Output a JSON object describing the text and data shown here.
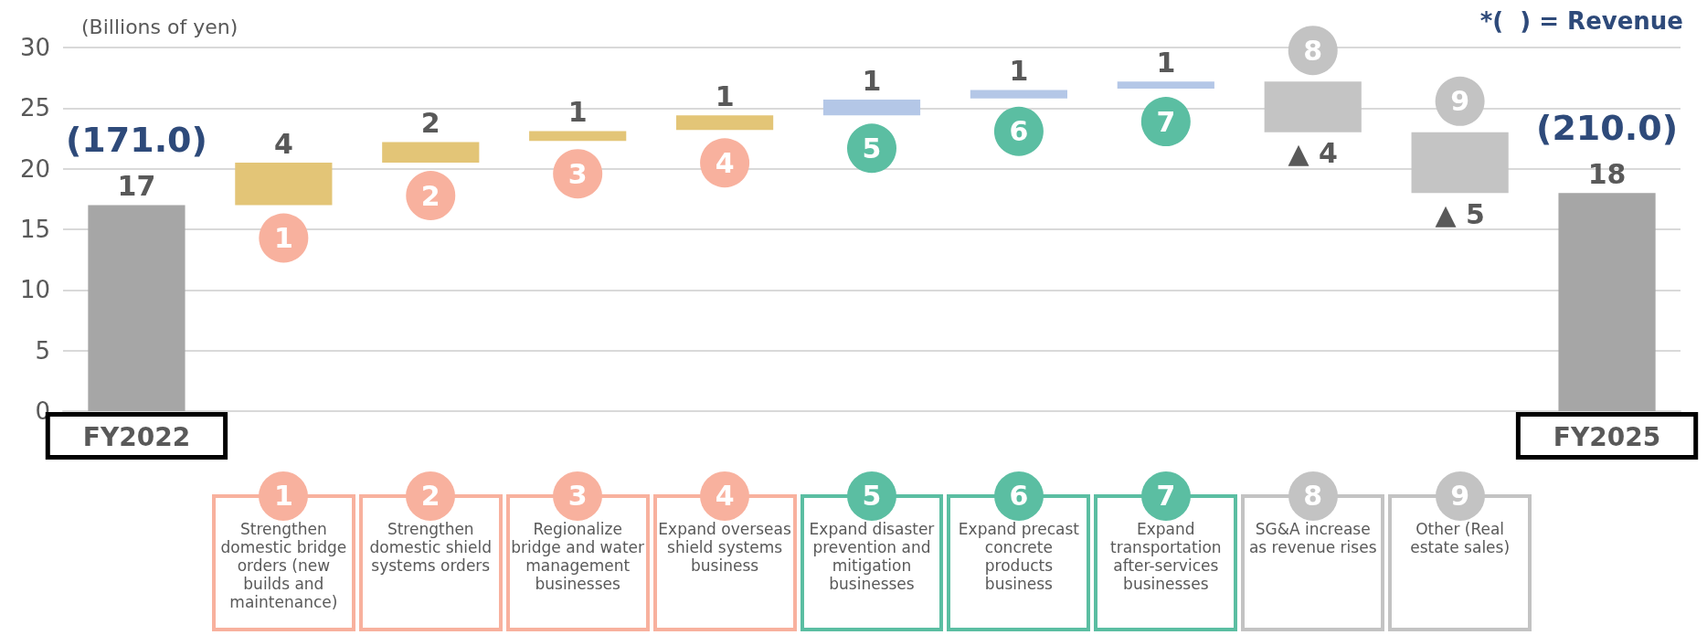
{
  "chart_data": {
    "type": "bar",
    "ylabel": "(Billions of yen)",
    "categories": [
      "FY2022",
      "Strengthen domestic bridge orders (new builds and maintenance)",
      "Strengthen domestic shield systems orders",
      "Regionalize bridge and water management businesses",
      "Expand overseas shield systems business",
      "Expand disaster prevention and mitigation businesses",
      "Expand precast concrete products business",
      "Expand transportation after-services businesses",
      "SG&A increase as revenue rises",
      "Other (Real estate sales)",
      "FY2025"
    ],
    "ylim": [
      0,
      30
    ],
    "yticks": [
      0,
      5,
      10,
      15,
      20,
      25,
      30
    ],
    "grid": "y",
    "series": [
      {
        "values": [
          17,
          3.5,
          1.7,
          0.8,
          1.2,
          1.3,
          0.7,
          0.6,
          -4.2,
          -5.0,
          18
        ],
        "base": [
          0,
          17,
          20.5,
          22.3,
          23.2,
          24.4,
          25.8,
          26.6,
          27.2,
          23.0,
          0
        ],
        "colors": [
          "#a6a6a6",
          "#e3c577",
          "#e3c577",
          "#e3c577",
          "#e3c577",
          "#b4c7e7",
          "#b4c7e7",
          "#b4c7e7",
          "#c4c4c4",
          "#c4c4c4",
          "#a6a6a6"
        ],
        "value_labels": [
          "17",
          "4",
          "2",
          "1",
          "1",
          "1",
          "1",
          "1",
          "▲ 4",
          "▲ 5",
          "18"
        ]
      }
    ],
    "annotations": [
      "(171.0)",
      "(210.0)",
      "1",
      "2",
      "3",
      "4",
      "5",
      "6",
      "7",
      "8",
      "9",
      "*(  ) = Revenue"
    ]
  }
}
